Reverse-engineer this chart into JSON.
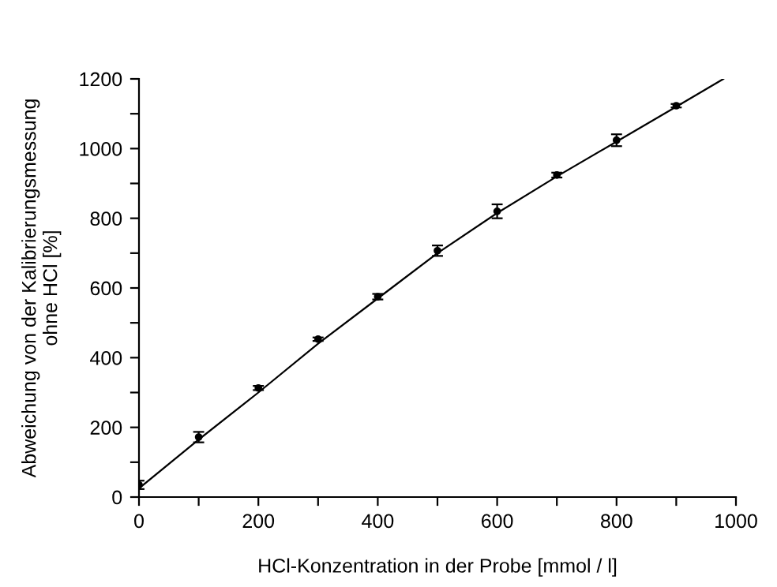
{
  "chart_data": {
    "type": "scatter",
    "xlabel": "HCl-Konzentration in der Probe [mmol / l]",
    "ylabel": "Abweichung von der Kalibrierungsmessung\nohne HCl [%]",
    "xlim": [
      0,
      1000
    ],
    "ylim": [
      0,
      1200
    ],
    "xticks": [
      0,
      {
        "value": 100,
        "label": null
      },
      200,
      {
        "value": 300,
        "label": null
      },
      400,
      {
        "value": 500,
        "label": null
      },
      600,
      {
        "value": 700,
        "label": null
      },
      800,
      {
        "value": 900,
        "label": null
      },
      1000
    ],
    "yticks": [
      0,
      {
        "value": 100,
        "label": null
      },
      200,
      {
        "value": 300,
        "label": null
      },
      400,
      {
        "value": 500,
        "label": null
      },
      600,
      {
        "value": 700,
        "label": null
      },
      800,
      {
        "value": 900,
        "label": null
      },
      1000,
      {
        "value": 1100,
        "label": null
      },
      1200
    ],
    "grid": false,
    "legend": false,
    "series": [
      {
        "color": "#000000",
        "marker": "circle",
        "x": [
          0,
          100,
          200,
          300,
          400,
          500,
          600,
          700,
          800,
          900
        ],
        "values": [
          35,
          172,
          313,
          453,
          575,
          707,
          820,
          924,
          1024,
          1123
        ],
        "errors": [
          12,
          15,
          6,
          5,
          8,
          15,
          20,
          7,
          17,
          5
        ]
      },
      {
        "type": "line",
        "color": "#000000",
        "marker": "none",
        "line_style": "solid",
        "x": [
          0,
          100,
          200,
          300,
          400,
          500,
          600,
          700,
          800,
          900,
          979
        ],
        "values": [
          25,
          165,
          300,
          440,
          570,
          700,
          815,
          920,
          1020,
          1120,
          1200
        ]
      }
    ]
  }
}
